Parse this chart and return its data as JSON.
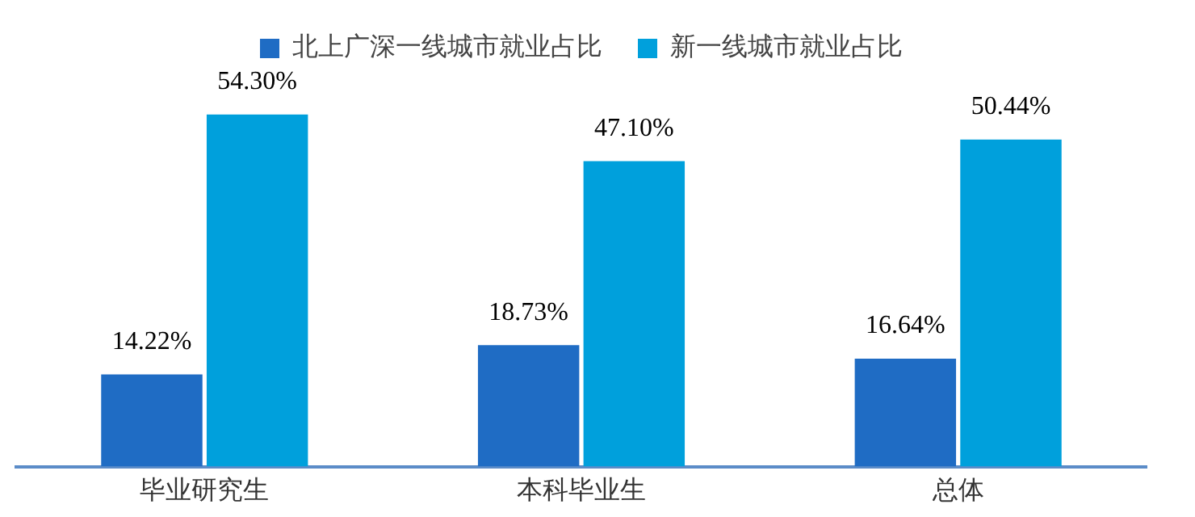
{
  "chart_data": {
    "type": "bar",
    "categories": [
      "毕业研究生",
      "本科毕业生",
      "总体"
    ],
    "series": [
      {
        "name": "北上广深一线城市就业占比",
        "color": "#1f6cc4",
        "values": [
          14.22,
          18.73,
          16.64
        ],
        "value_labels": [
          "14.22%",
          "18.73%",
          "16.64%"
        ]
      },
      {
        "name": "新一线城市就业占比",
        "color": "#00a0dc",
        "values": [
          54.3,
          47.1,
          50.44
        ],
        "value_labels": [
          "54.30%",
          "47.10%",
          "50.44%"
        ]
      }
    ],
    "tick_labels": "x",
    "legend": "top",
    "grid": false
  }
}
